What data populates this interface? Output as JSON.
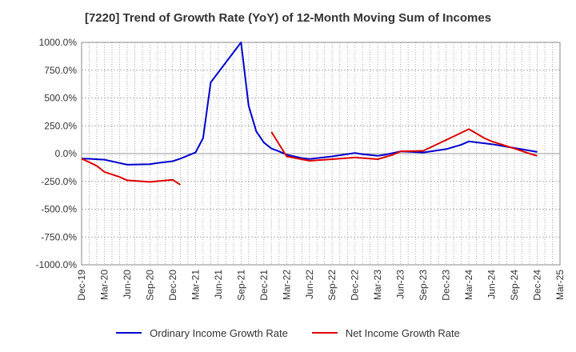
{
  "chart_data": {
    "type": "line",
    "title": "[7220]  Trend of Growth Rate (YoY) of 12-Month Moving Sum of Incomes",
    "xlabel": "",
    "ylabel": "",
    "ylim": [
      -1000,
      1000
    ],
    "y_ticks": [
      "1000.0%",
      "750.0%",
      "500.0%",
      "250.0%",
      "0.0%",
      "-250.0%",
      "-500.0%",
      "-750.0%",
      "-1000.0%"
    ],
    "x_ticks": [
      "Dec-19",
      "Mar-20",
      "Jun-20",
      "Sep-20",
      "Dec-20",
      "Mar-21",
      "Jun-21",
      "Sep-21",
      "Dec-21",
      "Mar-22",
      "Jun-22",
      "Sep-22",
      "Dec-22",
      "Mar-23",
      "Jun-23",
      "Sep-23",
      "Dec-23",
      "Mar-24",
      "Jun-24",
      "Sep-24",
      "Dec-24",
      "Mar-25"
    ],
    "grid": true,
    "legend_position": "bottom",
    "series": [
      {
        "name": "Ordinary Income Growth Rate",
        "color": "#0000cc",
        "points": [
          [
            "Dec-19",
            -45
          ],
          [
            "Jan-20",
            -47
          ],
          [
            "Mar-20",
            -55
          ],
          [
            "Apr-20",
            -70
          ],
          [
            "Jun-20",
            -100
          ],
          [
            "Sep-20",
            -95
          ],
          [
            "Oct-20",
            -85
          ],
          [
            "Dec-20",
            -68
          ],
          [
            "Jan-21",
            -45
          ],
          [
            "Mar-21",
            10
          ],
          [
            "Apr-21",
            140
          ],
          [
            "May-21",
            640
          ],
          [
            "Sep-21",
            1000
          ],
          [
            "Oct-21",
            430
          ],
          [
            "Nov-21",
            200
          ],
          [
            "Dec-21",
            100
          ],
          [
            "Jan-22",
            45
          ],
          [
            "Feb-22",
            20
          ],
          [
            "Mar-22",
            -10
          ],
          [
            "May-22",
            -40
          ],
          [
            "Jun-22",
            -48
          ],
          [
            "Sep-22",
            -25
          ],
          [
            "Dec-22",
            5
          ],
          [
            "Jan-23",
            -5
          ],
          [
            "Mar-23",
            -20
          ],
          [
            "Apr-23",
            -10
          ],
          [
            "Jun-23",
            20
          ],
          [
            "Sep-23",
            10
          ],
          [
            "Dec-23",
            40
          ],
          [
            "Feb-24",
            80
          ],
          [
            "Mar-24",
            110
          ],
          [
            "Jun-24",
            85
          ],
          [
            "Sep-24",
            50
          ],
          [
            "Dec-24",
            15
          ]
        ]
      },
      {
        "name": "Net Income Growth Rate",
        "color": "#dd0000",
        "points": [
          [
            "Dec-19",
            -45
          ],
          [
            "Feb-20",
            -110
          ],
          [
            "Mar-20",
            -165
          ],
          [
            "May-20",
            -210
          ],
          [
            "Jun-20",
            -240
          ],
          [
            "Sep-20",
            -255
          ],
          [
            "Dec-20",
            -235
          ],
          [
            "Jan-21",
            -280
          ]
        ],
        "points_2": [
          [
            "Jan-22",
            195
          ],
          [
            "Mar-22",
            -25
          ],
          [
            "Jun-22",
            -65
          ],
          [
            "Sep-22",
            -50
          ],
          [
            "Dec-22",
            -35
          ],
          [
            "Mar-23",
            -50
          ],
          [
            "May-23",
            -10
          ],
          [
            "Jun-23",
            20
          ],
          [
            "Sep-23",
            25
          ],
          [
            "Nov-23",
            90
          ],
          [
            "Jan-24",
            155
          ],
          [
            "Mar-24",
            220
          ],
          [
            "May-24",
            140
          ],
          [
            "Jun-24",
            110
          ],
          [
            "Sep-24",
            45
          ],
          [
            "Nov-24",
            0
          ],
          [
            "Dec-24",
            -20
          ]
        ]
      }
    ]
  }
}
